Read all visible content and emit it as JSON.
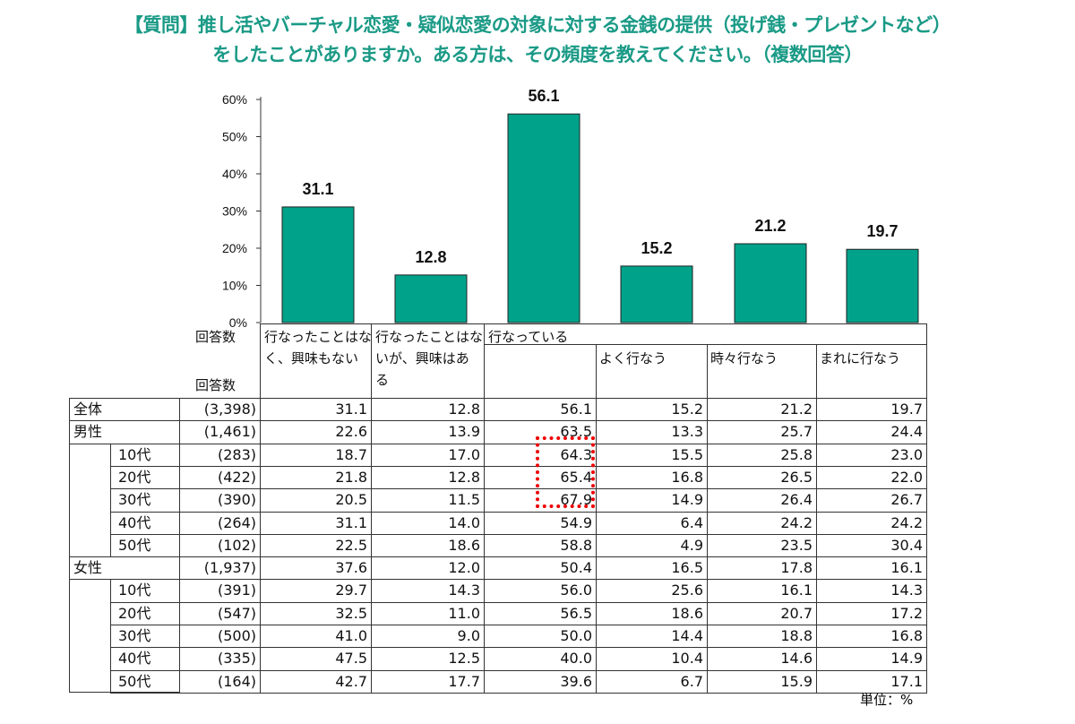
{
  "title": {
    "line1": "【質問】推し活やバーチャル恋愛・疑似恋愛の対象に対する金銭の提供（投げ銭・プレゼントなど）",
    "line2": "をしたことがありますか。ある方は、その頻度を教えてください。（複数回答）"
  },
  "colors": {
    "bar": "#00a28a",
    "title": "#1a9a86",
    "highlight": "#e00000"
  },
  "chart_data": {
    "type": "bar",
    "categories": [
      "行なったことはなく、興味もない",
      "行なったことはないが、興味はある",
      "行なっている",
      "よく行なう",
      "時々行なう",
      "まれに行なう"
    ],
    "values": [
      31.1,
      12.8,
      56.1,
      15.2,
      21.2,
      19.7
    ],
    "value_labels": [
      "31.1",
      "12.8",
      "56.1",
      "15.2",
      "21.2",
      "19.7"
    ],
    "yticks": [
      "0%",
      "10%",
      "20%",
      "30%",
      "40%",
      "50%",
      "60%"
    ],
    "ylim": [
      0,
      60
    ],
    "grid": false
  },
  "table": {
    "n_label": "回答数",
    "headers": [
      "行なったことはな",
      "く、興味もない",
      "行なったことはな",
      "いが、興味はあ",
      "る",
      "行なっている",
      "よく行なう",
      "時々行なう",
      "まれに行なう"
    ],
    "rows": [
      {
        "group": "全体",
        "sub": "",
        "n": "(3,398)",
        "values": [
          "31.1",
          "12.8",
          "56.1",
          "15.2",
          "21.2",
          "19.7"
        ]
      },
      {
        "group": "男性",
        "sub": "",
        "n": "(1,461)",
        "values": [
          "22.6",
          "13.9",
          "63.5",
          "13.3",
          "25.7",
          "24.4"
        ]
      },
      {
        "group": "",
        "sub": "10代",
        "n": "(283)",
        "values": [
          "18.7",
          "17.0",
          "64.3",
          "15.5",
          "25.8",
          "23.0"
        ]
      },
      {
        "group": "",
        "sub": "20代",
        "n": "(422)",
        "values": [
          "21.8",
          "12.8",
          "65.4",
          "16.8",
          "26.5",
          "22.0"
        ]
      },
      {
        "group": "",
        "sub": "30代",
        "n": "(390)",
        "values": [
          "20.5",
          "11.5",
          "67.9",
          "14.9",
          "26.4",
          "26.7"
        ]
      },
      {
        "group": "",
        "sub": "40代",
        "n": "(264)",
        "values": [
          "31.1",
          "14.0",
          "54.9",
          "6.4",
          "24.2",
          "24.2"
        ]
      },
      {
        "group": "",
        "sub": "50代",
        "n": "(102)",
        "values": [
          "22.5",
          "18.6",
          "58.8",
          "4.9",
          "23.5",
          "30.4"
        ]
      },
      {
        "group": "女性",
        "sub": "",
        "n": "(1,937)",
        "values": [
          "37.6",
          "12.0",
          "50.4",
          "16.5",
          "17.8",
          "16.1"
        ]
      },
      {
        "group": "",
        "sub": "10代",
        "n": "(391)",
        "values": [
          "29.7",
          "14.3",
          "56.0",
          "25.6",
          "16.1",
          "14.3"
        ]
      },
      {
        "group": "",
        "sub": "20代",
        "n": "(547)",
        "values": [
          "32.5",
          "11.0",
          "56.5",
          "18.6",
          "20.7",
          "17.2"
        ]
      },
      {
        "group": "",
        "sub": "30代",
        "n": "(500)",
        "values": [
          "41.0",
          "9.0",
          "50.0",
          "14.4",
          "18.8",
          "16.8"
        ]
      },
      {
        "group": "",
        "sub": "40代",
        "n": "(335)",
        "values": [
          "47.5",
          "12.5",
          "40.0",
          "10.4",
          "14.6",
          "14.9"
        ]
      },
      {
        "group": "",
        "sub": "50代",
        "n": "(164)",
        "values": [
          "42.7",
          "17.7",
          "39.6",
          "6.7",
          "15.9",
          "17.1"
        ]
      }
    ],
    "unit": "単位：%"
  }
}
